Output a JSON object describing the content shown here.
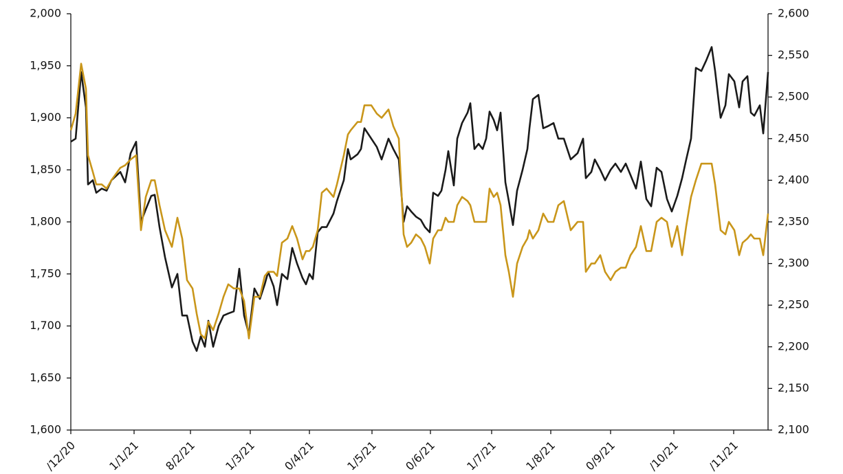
{
  "chart_data": {
    "type": "line",
    "x": [
      0,
      1.75,
      3.75,
      5.5,
      6.25,
      8,
      9.25,
      11.25,
      13,
      14.75,
      18,
      19.75,
      21.75,
      23.75,
      25.5,
      27.25,
      29.25,
      30.5,
      32.25,
      34.25,
      36.75,
      38.75,
      40.5,
      42.25,
      44.25,
      45.75,
      47.25,
      48.75,
      50,
      51.75,
      53.75,
      55.5,
      57.25,
      59.25,
      61.25,
      63,
      64.75,
      66.75,
      68.75,
      70.5,
      71.75,
      73.75,
      75,
      76.75,
      78.75,
      80.5,
      82.25,
      84.25,
      85.5,
      86.75,
      88,
      89.75,
      91.25,
      93,
      95.5,
      96.75,
      99.25,
      100.75,
      101.75,
      104.25,
      105.5,
      106.75,
      109.25,
      111.25,
      113,
      115.5,
      117.25,
      119.25,
      121,
      122.25,
      123.75,
      125.5,
      127.25,
      128.75,
      130.5,
      131.75,
      133.5,
      134.75,
      136.25,
      137.25,
      139.25,
      140.5,
      142.25,
      144.25,
      145.25,
      146.75,
      148.25,
      149.75,
      151,
      152.25,
      153.75,
      155,
      156.25,
      158,
      159.25,
      160.75,
      162.25,
      164.25,
      166,
      166.75,
      168,
      170,
      171.75,
      173.5,
      175.5,
      177.25,
      179.25,
      181.75,
      184.25,
      186.25,
      187.25,
      189.25,
      190.5,
      192.5,
      194.25,
      196.25,
      198,
      200,
      201.75,
      203.5,
      205.5,
      207.25,
      209.25,
      211,
      213,
      214.75,
      216.75,
      218.5,
      220.5,
      222.25,
      223.75,
      225.5,
      227.25,
      229.25,
      231,
      233,
      234.25,
      236.25,
      238,
      239.25,
      241.25,
      243,
      244.25,
      246,
      247.25,
      248.5,
      250.5,
      251.75,
      253.5
    ],
    "series": [
      {
        "color": "#1a1a1a",
        "values": [
          1877,
          1880,
          1944,
          1910,
          1836,
          1840,
          1828,
          1832,
          1830,
          1840,
          1848,
          1838,
          1866,
          1877,
          1800,
          1812,
          1825,
          1826,
          1795,
          1766,
          1737,
          1750,
          1710,
          1710,
          1685,
          1676,
          1690,
          1680,
          1705,
          1680,
          1700,
          1710,
          1712,
          1714,
          1755,
          1710,
          1692,
          1736,
          1726,
          1740,
          1752,
          1738,
          1720,
          1750,
          1745,
          1775,
          1760,
          1746,
          1740,
          1750,
          1745,
          1790,
          1795,
          1795,
          1808,
          1820,
          1840,
          1870,
          1860,
          1865,
          1870,
          1890,
          1880,
          1872,
          1860,
          1880,
          1870,
          1860,
          1800,
          1815,
          1810,
          1805,
          1802,
          1795,
          1790,
          1828,
          1825,
          1830,
          1850,
          1868,
          1835,
          1880,
          1895,
          1905,
          1914,
          1870,
          1875,
          1870,
          1880,
          1906,
          1898,
          1888,
          1905,
          1838,
          1820,
          1797,
          1830,
          1850,
          1870,
          1890,
          1918,
          1922,
          1890,
          1892,
          1895,
          1880,
          1880,
          1860,
          1866,
          1880,
          1842,
          1848,
          1860,
          1850,
          1840,
          1850,
          1856,
          1848,
          1856,
          1845,
          1832,
          1858,
          1822,
          1815,
          1852,
          1848,
          1822,
          1810,
          1825,
          1842,
          1860,
          1880,
          1948,
          1945,
          1955,
          1968,
          1945,
          1900,
          1912,
          1942,
          1935,
          1910,
          1935,
          1940,
          1905,
          1902,
          1912,
          1885,
          1944
        ]
      },
      {
        "color": "#c9961a",
        "axis": "y2",
        "values": [
          2460,
          2480,
          2540,
          2510,
          2430,
          2410,
          2395,
          2395,
          2390,
          2400,
          2415,
          2418,
          2425,
          2430,
          2340,
          2380,
          2400,
          2400,
          2370,
          2340,
          2320,
          2355,
          2330,
          2280,
          2270,
          2240,
          2215,
          2210,
          2230,
          2220,
          2240,
          2260,
          2275,
          2270,
          2270,
          2255,
          2210,
          2260,
          2260,
          2285,
          2290,
          2290,
          2285,
          2325,
          2330,
          2345,
          2330,
          2305,
          2315,
          2315,
          2320,
          2340,
          2385,
          2390,
          2380,
          2395,
          2430,
          2455,
          2460,
          2470,
          2470,
          2490,
          2490,
          2480,
          2475,
          2485,
          2465,
          2450,
          2335,
          2320,
          2325,
          2335,
          2330,
          2320,
          2300,
          2330,
          2340,
          2340,
          2355,
          2350,
          2350,
          2370,
          2380,
          2375,
          2370,
          2350,
          2350,
          2350,
          2350,
          2390,
          2380,
          2385,
          2370,
          2310,
          2290,
          2260,
          2300,
          2320,
          2330,
          2340,
          2330,
          2340,
          2360,
          2350,
          2350,
          2370,
          2375,
          2340,
          2350,
          2350,
          2290,
          2300,
          2300,
          2310,
          2290,
          2280,
          2290,
          2295,
          2295,
          2310,
          2320,
          2345,
          2315,
          2315,
          2350,
          2355,
          2350,
          2320,
          2345,
          2310,
          2345,
          2380,
          2400,
          2420,
          2420,
          2420,
          2395,
          2340,
          2335,
          2350,
          2340,
          2310,
          2325,
          2330,
          2335,
          2330,
          2330,
          2310,
          2360
        ]
      }
    ],
    "xlim": [
      0,
      253.5
    ],
    "xticks": [
      {
        "value": 0,
        "label": "/12/20"
      },
      {
        "value": 23,
        "label": "1/1/21"
      },
      {
        "value": 43.5,
        "label": "8/2/21"
      },
      {
        "value": 65.25,
        "label": "1/3/21"
      },
      {
        "value": 86.75,
        "label": "0/4/21"
      },
      {
        "value": 109.5,
        "label": "1/5/21"
      },
      {
        "value": 130.75,
        "label": "0/6/21"
      },
      {
        "value": 153,
        "label": "1/7/21"
      },
      {
        "value": 174.5,
        "label": "1/8/21"
      },
      {
        "value": 196.25,
        "label": "0/9/21"
      },
      {
        "value": 219.25,
        "label": "/10/21"
      },
      {
        "value": 241,
        "label": "/11/21"
      }
    ],
    "ylim": [
      1600,
      2000
    ],
    "yticks": [
      {
        "value": 1600,
        "label": "1,600"
      },
      {
        "value": 1650,
        "label": "1,650"
      },
      {
        "value": 1700,
        "label": "1,700"
      },
      {
        "value": 1750,
        "label": "1,750"
      },
      {
        "value": 1800,
        "label": "1,800"
      },
      {
        "value": 1850,
        "label": "1,850"
      },
      {
        "value": 1900,
        "label": "1,900"
      },
      {
        "value": 1950,
        "label": "1,950"
      },
      {
        "value": 2000,
        "label": "2,000"
      }
    ],
    "y2lim": [
      2100,
      2600
    ],
    "y2ticks": [
      {
        "value": 2100,
        "label": "2,100"
      },
      {
        "value": 2150,
        "label": "2,150"
      },
      {
        "value": 2200,
        "label": "2,200"
      },
      {
        "value": 2250,
        "label": "2,250"
      },
      {
        "value": 2300,
        "label": "2,300"
      },
      {
        "value": 2350,
        "label": "2,350"
      },
      {
        "value": 2400,
        "label": "2,400"
      },
      {
        "value": 2450,
        "label": "2,450"
      },
      {
        "value": 2500,
        "label": "2,500"
      },
      {
        "value": 2550,
        "label": "2,550"
      },
      {
        "value": 2600,
        "label": "2,600"
      }
    ]
  }
}
